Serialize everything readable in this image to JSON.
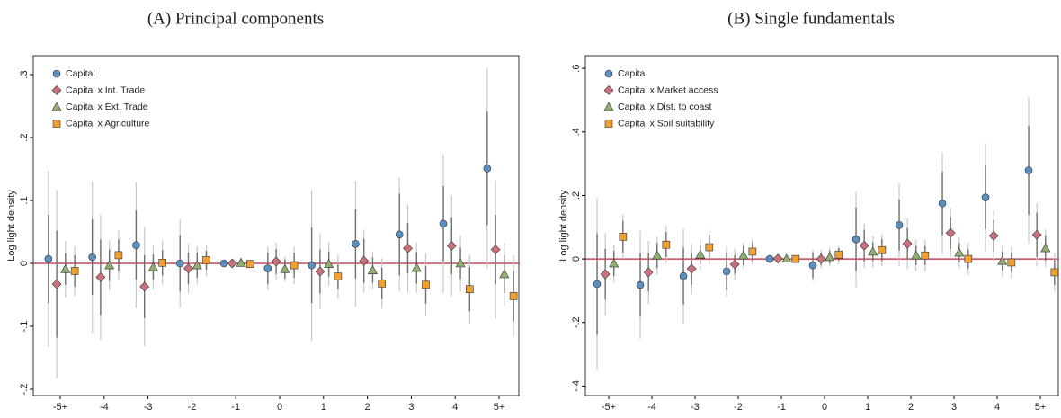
{
  "chart_data": [
    {
      "type": "errorbar",
      "title": "(A) Principal components",
      "y_label": "Log light density",
      "categories": [
        "-5+",
        "-4",
        "-3",
        "-2",
        "-1",
        "0",
        "1",
        "2",
        "3",
        "4",
        "5+"
      ],
      "ylim": [
        -0.21,
        0.33
      ],
      "yticks": [
        {
          "value": -0.2,
          "label": "-.2"
        },
        {
          "value": -0.1,
          "label": "-.1"
        },
        0,
        {
          "value": 0.1,
          "label": ".1"
        },
        {
          "value": 0.2,
          "label": ".2"
        },
        {
          "value": 0.3,
          "label": ".3"
        }
      ],
      "legend": "upper left",
      "zero_line_color": "#c0203a",
      "series": [
        {
          "name": "Capital",
          "color": "#5b8fbf",
          "marker": "circle",
          "values": [
            0.007,
            0.01,
            0.029,
            0,
            0,
            -0.008,
            -0.003,
            0.031,
            0.046,
            0.063,
            0.151
          ],
          "errors": [
            0.07,
            0.06,
            0.055,
            0.045,
            0,
            0.025,
            0.06,
            0.055,
            0.065,
            0.06,
            0.09
          ],
          "errors_outer": [
            0.14,
            0.12,
            0.1,
            0.07,
            0,
            0.035,
            0.12,
            0.1,
            0.09,
            0.11,
            0.16
          ]
        },
        {
          "name": "Capital x Int. Trade",
          "color": "#c9727a",
          "marker": "diamond",
          "values": [
            -0.033,
            -0.022,
            -0.037,
            -0.008,
            0,
            0.003,
            -0.013,
            0.004,
            0.024,
            0.028,
            0.022
          ],
          "errors": [
            0.085,
            0.06,
            0.05,
            0.025,
            0,
            0.02,
            0.035,
            0.035,
            0.04,
            0.045,
            0.055
          ],
          "errors_outer": [
            0.15,
            0.1,
            0.095,
            0.04,
            0,
            0.03,
            0.06,
            0.05,
            0.07,
            0.08,
            0.11
          ]
        },
        {
          "name": "Capital x Ext. Trade",
          "color": "#8fb070",
          "marker": "triangle",
          "values": [
            -0.009,
            -0.003,
            -0.006,
            -0.003,
            0.001,
            -0.009,
            -0.001,
            -0.011,
            -0.007,
            0.0,
            -0.017
          ],
          "errors": [
            0.025,
            0.025,
            0.02,
            0.02,
            0.003,
            0.015,
            0.02,
            0.02,
            0.025,
            0.025,
            0.03
          ],
          "errors_outer": [
            0.045,
            0.04,
            0.035,
            0.03,
            0.005,
            0.02,
            0.035,
            0.03,
            0.04,
            0.045,
            0.05
          ]
        },
        {
          "name": "Capital x Agriculture",
          "color": "#f0a030",
          "marker": "square",
          "values": [
            -0.012,
            0.013,
            0.001,
            0.005,
            -0.001,
            -0.003,
            -0.021,
            -0.032,
            -0.034,
            -0.041,
            -0.052
          ],
          "errors": [
            0.025,
            0.025,
            0.02,
            0.015,
            0.003,
            0.02,
            0.02,
            0.025,
            0.03,
            0.035,
            0.04
          ],
          "errors_outer": [
            0.04,
            0.04,
            0.035,
            0.025,
            0.005,
            0.03,
            0.035,
            0.04,
            0.05,
            0.055,
            0.065
          ]
        }
      ]
    },
    {
      "type": "errorbar",
      "title": "(B) Single fundamentals",
      "y_label": "Log light density",
      "categories": [
        "-5+",
        "-4",
        "-3",
        "-2",
        "-1",
        "0",
        "1",
        "2",
        "3",
        "4",
        "5+"
      ],
      "ylim": [
        -0.43,
        0.64
      ],
      "yticks": [
        {
          "value": -0.4,
          "label": "-.4"
        },
        {
          "value": -0.2,
          "label": "-.2"
        },
        0,
        {
          "value": 0.2,
          "label": ".2"
        },
        {
          "value": 0.4,
          "label": ".4"
        },
        {
          "value": 0.6,
          "label": ".6"
        }
      ],
      "legend": "upper left",
      "zero_line_color": "#c0203a",
      "series": [
        {
          "name": "Capital",
          "color": "#5b8fbf",
          "marker": "circle",
          "values": [
            -0.079,
            -0.082,
            -0.054,
            -0.039,
            0,
            -0.02,
            0.062,
            0.107,
            0.175,
            0.194,
            0.279
          ],
          "errors": [
            0.16,
            0.1,
            0.09,
            0.06,
            0,
            0.04,
            0.1,
            0.08,
            0.1,
            0.1,
            0.14
          ],
          "errors_outer": [
            0.27,
            0.17,
            0.15,
            0.08,
            0,
            0.05,
            0.15,
            0.13,
            0.16,
            0.17,
            0.23
          ]
        },
        {
          "name": "Capital x Market access",
          "color": "#c9727a",
          "marker": "diamond",
          "values": [
            -0.048,
            -0.042,
            -0.031,
            -0.017,
            0.001,
            0.0,
            0.042,
            0.048,
            0.082,
            0.073,
            0.076
          ],
          "errors": [
            0.08,
            0.06,
            0.05,
            0.03,
            0,
            0.02,
            0.05,
            0.05,
            0.05,
            0.05,
            0.07
          ],
          "errors_outer": [
            0.13,
            0.1,
            0.08,
            0.05,
            0,
            0.03,
            0.07,
            0.08,
            0.08,
            0.08,
            0.1
          ]
        },
        {
          "name": "Capital x Dist. to coast",
          "color": "#8fb070",
          "marker": "triangle",
          "values": [
            -0.014,
            0.011,
            0.014,
            0.011,
            0.001,
            0.006,
            0.023,
            0.011,
            0.02,
            -0.006,
            0.034
          ],
          "errors": [
            0.04,
            0.04,
            0.03,
            0.03,
            0.003,
            0.02,
            0.03,
            0.03,
            0.03,
            0.03,
            0.04
          ],
          "errors_outer": [
            0.06,
            0.06,
            0.05,
            0.04,
            0.005,
            0.03,
            0.05,
            0.05,
            0.05,
            0.05,
            0.06
          ]
        },
        {
          "name": "Capital x Soil suitability",
          "color": "#f0a030",
          "marker": "square",
          "values": [
            0.07,
            0.045,
            0.037,
            0.023,
            0,
            0.014,
            0.028,
            0.011,
            0.0,
            -0.011,
            -0.042
          ],
          "errors": [
            0.05,
            0.04,
            0.04,
            0.03,
            0.003,
            0.02,
            0.035,
            0.03,
            0.03,
            0.03,
            0.04
          ],
          "errors_outer": [
            0.07,
            0.06,
            0.055,
            0.04,
            0.005,
            0.03,
            0.05,
            0.05,
            0.05,
            0.05,
            0.06
          ]
        }
      ]
    }
  ]
}
